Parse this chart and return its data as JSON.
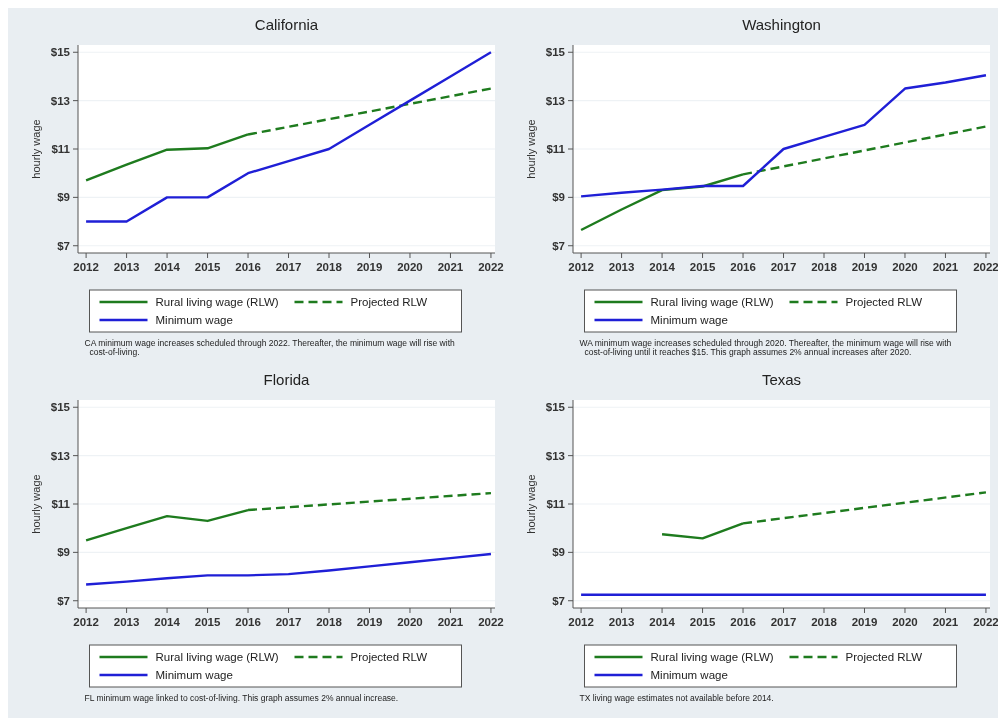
{
  "chart_data": [
    {
      "type": "line",
      "title": "California",
      "ylabel": "hourly wage",
      "xlim": [
        2011.8,
        2022.1
      ],
      "ylim": [
        6.7,
        15.3
      ],
      "xticks": [
        2012,
        2013,
        2014,
        2015,
        2016,
        2017,
        2018,
        2019,
        2020,
        2021,
        2022
      ],
      "yticks": [
        {
          "value": 7,
          "label": "$7"
        },
        {
          "value": 9,
          "label": "$9"
        },
        {
          "value": 11,
          "label": "$11"
        },
        {
          "value": 13,
          "label": "$13"
        },
        {
          "value": 15,
          "label": "$15"
        }
      ],
      "grid": "y",
      "legend": "bottom",
      "annotations": [
        "CA minimum wage increases scheduled through 2022. Thereafter, the minimum wage will rise with cost-of-living."
      ],
      "series": [
        {
          "name": "Rural living wage (RLW)",
          "color": "#1e7b1e",
          "line_style": "solid",
          "x": [
            2012,
            2013,
            2014,
            2015,
            2016
          ],
          "values": [
            9.7,
            10.35,
            10.97,
            11.03,
            11.6
          ]
        },
        {
          "name": "Projected RLW",
          "color": "#1e7b1e",
          "line_style": "dashed",
          "x": [
            2016,
            2022
          ],
          "values": [
            11.6,
            13.5
          ]
        },
        {
          "name": "Minimum wage",
          "color": "#1f1fd6",
          "line_style": "solid",
          "x": [
            2012,
            2013,
            2014,
            2015,
            2016,
            2017,
            2018,
            2019,
            2020,
            2021,
            2022
          ],
          "values": [
            8,
            8,
            9,
            9,
            10,
            10.5,
            11,
            12,
            13,
            14,
            15
          ]
        }
      ]
    },
    {
      "type": "line",
      "title": "Washington",
      "ylabel": "hourly wage",
      "xlim": [
        2011.8,
        2022.1
      ],
      "ylim": [
        6.7,
        15.3
      ],
      "xticks": [
        2012,
        2013,
        2014,
        2015,
        2016,
        2017,
        2018,
        2019,
        2020,
        2021,
        2022
      ],
      "yticks": [
        {
          "value": 7,
          "label": "$7"
        },
        {
          "value": 9,
          "label": "$9"
        },
        {
          "value": 11,
          "label": "$11"
        },
        {
          "value": 13,
          "label": "$13"
        },
        {
          "value": 15,
          "label": "$15"
        }
      ],
      "grid": "y",
      "legend": "bottom",
      "annotations": [
        "WA minimum wage increases scheduled through 2020. Thereafter, the minimum wage will rise with cost-of-living until it reaches $15. This graph assumes 2% annual increases after 2020."
      ],
      "series": [
        {
          "name": "Rural living wage (RLW)",
          "color": "#1e7b1e",
          "line_style": "solid",
          "x": [
            2012,
            2013,
            2014,
            2015,
            2016
          ],
          "values": [
            7.65,
            8.5,
            9.3,
            9.45,
            9.95
          ]
        },
        {
          "name": "Projected RLW",
          "color": "#1e7b1e",
          "line_style": "dashed",
          "x": [
            2016,
            2022
          ],
          "values": [
            9.95,
            11.93
          ]
        },
        {
          "name": "Minimum wage",
          "color": "#1f1fd6",
          "line_style": "solid",
          "x": [
            2012,
            2013,
            2014,
            2015,
            2016,
            2017,
            2018,
            2019,
            2020,
            2021,
            2022
          ],
          "values": [
            9.04,
            9.19,
            9.32,
            9.47,
            9.47,
            11,
            11.5,
            12,
            13.5,
            13.75,
            14.05
          ]
        }
      ]
    },
    {
      "type": "line",
      "title": "Florida",
      "ylabel": "hourly wage",
      "xlim": [
        2011.8,
        2022.1
      ],
      "ylim": [
        6.7,
        15.3
      ],
      "xticks": [
        2012,
        2013,
        2014,
        2015,
        2016,
        2017,
        2018,
        2019,
        2020,
        2021,
        2022
      ],
      "yticks": [
        {
          "value": 7,
          "label": "$7"
        },
        {
          "value": 9,
          "label": "$9"
        },
        {
          "value": 11,
          "label": "$11"
        },
        {
          "value": 13,
          "label": "$13"
        },
        {
          "value": 15,
          "label": "$15"
        }
      ],
      "grid": "y",
      "legend": "bottom",
      "annotations": [
        "FL minimum wage linked to cost-of-living. This graph assumes 2% annual increase."
      ],
      "series": [
        {
          "name": "Rural living wage (RLW)",
          "color": "#1e7b1e",
          "line_style": "solid",
          "x": [
            2012,
            2013,
            2014,
            2015,
            2016
          ],
          "values": [
            9.5,
            10.0,
            10.5,
            10.3,
            10.75
          ]
        },
        {
          "name": "Projected RLW",
          "color": "#1e7b1e",
          "line_style": "dashed",
          "x": [
            2016,
            2022
          ],
          "values": [
            10.75,
            11.45
          ]
        },
        {
          "name": "Minimum wage",
          "color": "#1f1fd6",
          "line_style": "solid",
          "x": [
            2012,
            2013,
            2014,
            2015,
            2016,
            2017,
            2018,
            2019,
            2020,
            2021,
            2022
          ],
          "values": [
            7.67,
            7.79,
            7.93,
            8.05,
            8.05,
            8.1,
            8.25,
            8.42,
            8.59,
            8.76,
            8.93
          ]
        }
      ]
    },
    {
      "type": "line",
      "title": "Texas",
      "ylabel": "hourly wage",
      "xlim": [
        2011.8,
        2022.1
      ],
      "ylim": [
        6.7,
        15.3
      ],
      "xticks": [
        2012,
        2013,
        2014,
        2015,
        2016,
        2017,
        2018,
        2019,
        2020,
        2021,
        2022
      ],
      "yticks": [
        {
          "value": 7,
          "label": "$7"
        },
        {
          "value": 9,
          "label": "$9"
        },
        {
          "value": 11,
          "label": "$11"
        },
        {
          "value": 13,
          "label": "$13"
        },
        {
          "value": 15,
          "label": "$15"
        }
      ],
      "grid": "y",
      "legend": "bottom",
      "annotations": [
        "TX living wage estimates not available before 2014."
      ],
      "series": [
        {
          "name": "Rural living wage (RLW)",
          "color": "#1e7b1e",
          "line_style": "solid",
          "x": [
            2014,
            2015,
            2016
          ],
          "values": [
            9.75,
            9.58,
            10.2
          ]
        },
        {
          "name": "Projected RLW",
          "color": "#1e7b1e",
          "line_style": "dashed",
          "x": [
            2016,
            2022
          ],
          "values": [
            10.2,
            11.48
          ]
        },
        {
          "name": "Minimum wage",
          "color": "#1f1fd6",
          "line_style": "solid",
          "x": [
            2012,
            2013,
            2014,
            2015,
            2016,
            2017,
            2018,
            2019,
            2020,
            2021,
            2022
          ],
          "values": [
            7.25,
            7.25,
            7.25,
            7.25,
            7.25,
            7.25,
            7.25,
            7.25,
            7.25,
            7.25,
            7.25
          ]
        }
      ]
    }
  ]
}
